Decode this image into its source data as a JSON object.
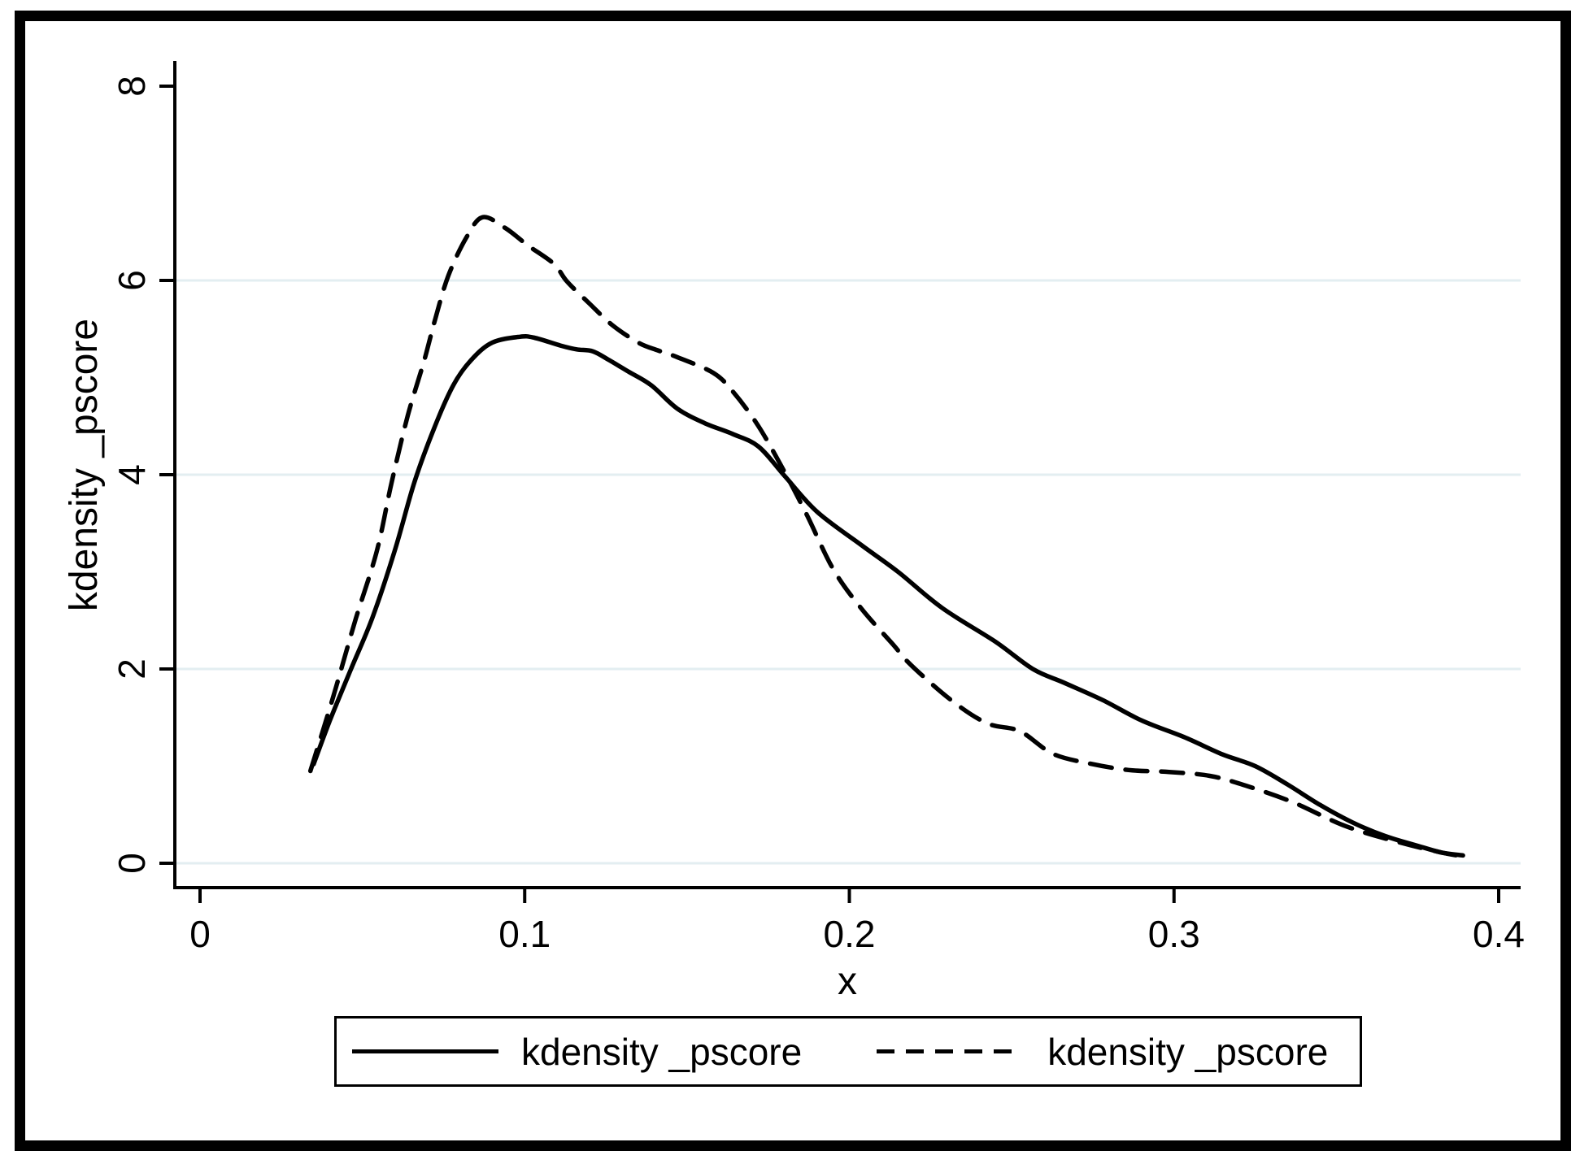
{
  "figure": {
    "background": "#ffffff",
    "border_color": "#000000",
    "line_color": "#000000",
    "grid_color": "#e3eef1"
  },
  "axes": {
    "x_title": "x",
    "y_title": "kdensity _pscore",
    "x_tick_labels": [
      "0",
      "0.1",
      "0.2",
      "0.3",
      "0.4"
    ],
    "y_tick_labels": [
      "0",
      "2",
      "4",
      "6",
      "8"
    ]
  },
  "legend": {
    "entries": [
      {
        "label": "kdensity _pscore",
        "line_style": "solid"
      },
      {
        "label": "kdensity _pscore",
        "line_style": "dashed"
      }
    ]
  },
  "chart_data": {
    "type": "line",
    "title": "",
    "xlabel": "x",
    "ylabel": "kdensity _pscore",
    "xlim": [
      0,
      0.41
    ],
    "ylim": [
      0,
      8.25
    ],
    "x_ticks": [
      0,
      0.1,
      0.2,
      0.3,
      0.4
    ],
    "y_ticks": [
      0,
      2,
      4,
      6,
      8
    ],
    "grid_y": [
      0,
      2,
      4,
      6
    ],
    "grid": "horizontal-only",
    "legend_position": "bottom-center",
    "series": [
      {
        "name": "kdensity _pscore",
        "style": "solid",
        "points": [
          [
            0.035,
            1.02
          ],
          [
            0.04,
            1.47
          ],
          [
            0.0465,
            2.0
          ],
          [
            0.053,
            2.52
          ],
          [
            0.06,
            3.22
          ],
          [
            0.066,
            3.92
          ],
          [
            0.072,
            4.47
          ],
          [
            0.078,
            4.92
          ],
          [
            0.0835,
            5.18
          ],
          [
            0.09,
            5.36
          ],
          [
            0.0985,
            5.42
          ],
          [
            0.103,
            5.41
          ],
          [
            0.111,
            5.33
          ],
          [
            0.116,
            5.29
          ],
          [
            0.121,
            5.27
          ],
          [
            0.126,
            5.18
          ],
          [
            0.132,
            5.06
          ],
          [
            0.139,
            4.92
          ],
          [
            0.147,
            4.68
          ],
          [
            0.1555,
            4.53
          ],
          [
            0.164,
            4.42
          ],
          [
            0.172,
            4.29
          ],
          [
            0.18,
            3.99
          ],
          [
            0.19,
            3.62
          ],
          [
            0.2035,
            3.28
          ],
          [
            0.215,
            3.0
          ],
          [
            0.2285,
            2.63
          ],
          [
            0.245,
            2.28
          ],
          [
            0.2565,
            2.0
          ],
          [
            0.266,
            1.86
          ],
          [
            0.278,
            1.68
          ],
          [
            0.29,
            1.47
          ],
          [
            0.303,
            1.3
          ],
          [
            0.315,
            1.12
          ],
          [
            0.325,
            1.0
          ],
          [
            0.335,
            0.81
          ],
          [
            0.345,
            0.6
          ],
          [
            0.355,
            0.42
          ],
          [
            0.365,
            0.28
          ],
          [
            0.375,
            0.18
          ],
          [
            0.3825,
            0.11
          ],
          [
            0.389,
            0.08
          ]
        ]
      },
      {
        "name": "kdensity _pscore",
        "style": "dashed",
        "points": [
          [
            0.034,
            0.95
          ],
          [
            0.04,
            1.6
          ],
          [
            0.0435,
            2.0
          ],
          [
            0.048,
            2.52
          ],
          [
            0.0545,
            3.22
          ],
          [
            0.059,
            3.92
          ],
          [
            0.064,
            4.61
          ],
          [
            0.069,
            5.17
          ],
          [
            0.0725,
            5.61
          ],
          [
            0.0765,
            6.05
          ],
          [
            0.082,
            6.44
          ],
          [
            0.087,
            6.65
          ],
          [
            0.094,
            6.54
          ],
          [
            0.101,
            6.36
          ],
          [
            0.109,
            6.17
          ],
          [
            0.113,
            5.99
          ],
          [
            0.12,
            5.76
          ],
          [
            0.127,
            5.54
          ],
          [
            0.135,
            5.36
          ],
          [
            0.141,
            5.28
          ],
          [
            0.147,
            5.21
          ],
          [
            0.158,
            5.05
          ],
          [
            0.164,
            4.86
          ],
          [
            0.172,
            4.5
          ],
          [
            0.1805,
            4.0
          ],
          [
            0.187,
            3.58
          ],
          [
            0.195,
            3.03
          ],
          [
            0.2035,
            2.63
          ],
          [
            0.2135,
            2.25
          ],
          [
            0.219,
            2.04
          ],
          [
            0.2317,
            1.67
          ],
          [
            0.2425,
            1.44
          ],
          [
            0.2525,
            1.36
          ],
          [
            0.2625,
            1.13
          ],
          [
            0.2735,
            1.03
          ],
          [
            0.286,
            0.96
          ],
          [
            0.2985,
            0.94
          ],
          [
            0.311,
            0.9
          ],
          [
            0.322,
            0.8
          ],
          [
            0.3365,
            0.63
          ],
          [
            0.353,
            0.38
          ],
          [
            0.37,
            0.21
          ],
          [
            0.3825,
            0.11
          ],
          [
            0.389,
            0.07
          ]
        ]
      }
    ]
  }
}
